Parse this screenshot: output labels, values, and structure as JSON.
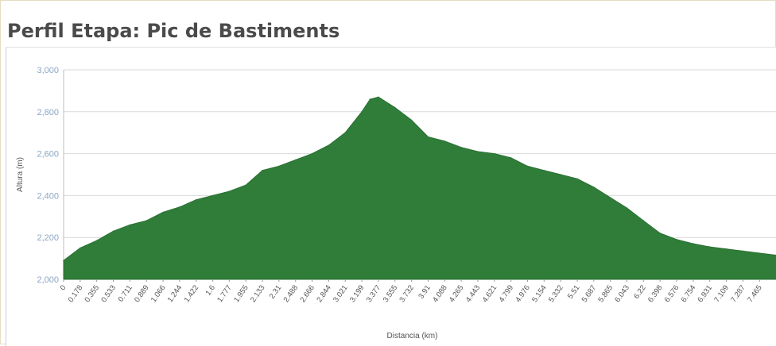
{
  "title": "Perfil Etapa: Pic de Bastiments",
  "chart_data": {
    "type": "area",
    "xlabel": "Distancia (km)",
    "ylabel": "Altura (m)",
    "ylim": [
      2000,
      3000
    ],
    "yticks": [
      2000,
      2200,
      2400,
      2600,
      2800,
      3000
    ],
    "ytick_labels": [
      "2,000",
      "2,200",
      "2,400",
      "2,600",
      "2,800",
      "3,000"
    ],
    "grid": true,
    "fill_color": "#2f7d39",
    "xtick_labels": [
      "0",
      "0.178",
      "0.355",
      "0.533",
      "0.711",
      "0.889",
      "1.066",
      "1.244",
      "1.422",
      "1.6",
      "1.777",
      "1.955",
      "2.133",
      "2.31",
      "2.488",
      "2.666",
      "2.844",
      "3.021",
      "3.199",
      "3.377",
      "3.555",
      "3.732",
      "3.91",
      "4.088",
      "4.265",
      "4.443",
      "4.621",
      "4.799",
      "4.976",
      "5.154",
      "5.332",
      "5.51",
      "5.687",
      "5.865",
      "6.043",
      "6.22",
      "6.398",
      "6.576",
      "6.754",
      "6.931",
      "7.109",
      "7.287",
      "7.465"
    ],
    "series": [
      {
        "x": [
          0,
          0.178,
          0.355,
          0.533,
          0.711,
          0.889,
          1.066,
          1.244,
          1.422,
          1.6,
          1.777,
          1.955,
          2.133,
          2.31,
          2.488,
          2.666,
          2.844,
          3.021,
          3.199,
          3.288,
          3.377,
          3.555,
          3.732,
          3.91,
          4.088,
          4.265,
          4.443,
          4.621,
          4.799,
          4.976,
          5.154,
          5.332,
          5.51,
          5.687,
          5.865,
          6.043,
          6.22,
          6.398,
          6.576,
          6.754,
          6.931,
          7.109,
          7.287,
          7.465,
          7.65
        ],
        "values": [
          2090,
          2150,
          2185,
          2230,
          2260,
          2280,
          2320,
          2345,
          2380,
          2400,
          2420,
          2450,
          2520,
          2540,
          2570,
          2600,
          2640,
          2700,
          2800,
          2860,
          2870,
          2820,
          2760,
          2680,
          2660,
          2630,
          2610,
          2600,
          2580,
          2540,
          2520,
          2500,
          2480,
          2440,
          2390,
          2340,
          2280,
          2220,
          2190,
          2170,
          2155,
          2145,
          2135,
          2125,
          2115
        ]
      }
    ]
  }
}
